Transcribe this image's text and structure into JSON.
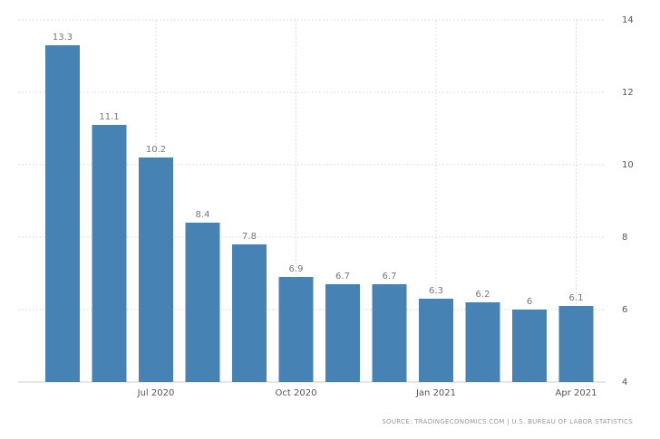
{
  "chart_data": {
    "type": "bar",
    "categories": [
      null,
      null,
      "Jul 2020",
      null,
      null,
      "Oct 2020",
      null,
      null,
      "Jan 2021",
      null,
      null,
      "Apr 2021"
    ],
    "values": [
      13.3,
      11.1,
      10.2,
      8.4,
      7.8,
      6.9,
      6.7,
      6.7,
      6.3,
      6.2,
      6,
      6.1
    ],
    "color": "#4682b4",
    "ylim": [
      4,
      14
    ],
    "yticks": [
      4,
      6,
      8,
      10,
      12,
      14
    ],
    "grid": true,
    "source": "SOURCE: TRADINGECONOMICS.COM | U.S. BUREAU OF LABOR STATISTICS"
  }
}
